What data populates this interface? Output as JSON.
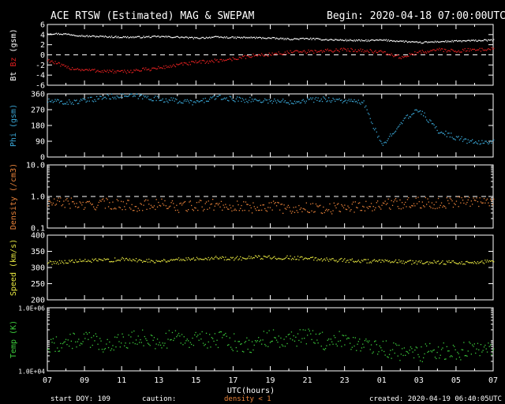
{
  "header": {
    "title": "ACE RTSW (Estimated) MAG & SWEPAM",
    "begin": "Begin: 2020-04-18 07:00:00UTC"
  },
  "footer": {
    "start_doy": "start DOY: 109",
    "caution": "caution:",
    "density_note": "density < 1",
    "created": "created: 2020-04-19 06:40:05UTC"
  },
  "colors": {
    "bt": "#ffffff",
    "bz": "#e02020",
    "phi": "#3aa8d8",
    "density": "#e8823a",
    "speed": "#e6e640",
    "temp": "#3ccc3c",
    "axis": "#ffffff",
    "background": "#000000"
  },
  "chart_data": [
    {
      "type": "scatter",
      "title": "ACE RTSW (Estimated) MAG & SWEPAM",
      "ylabel_parts": [
        "Bt",
        "Bz",
        "(gsm)"
      ],
      "ylim": [
        -6,
        6
      ],
      "yticks": [
        "6",
        "4",
        "2",
        "0",
        "-2",
        "-4",
        "-6"
      ],
      "reference_line": 0,
      "x_hours": [
        0,
        1,
        2,
        3,
        4,
        5,
        6,
        7,
        8,
        9,
        10,
        11,
        12,
        13,
        14,
        15,
        16,
        17,
        18,
        19,
        20,
        21,
        22,
        23,
        24
      ],
      "series": [
        {
          "name": "Bt",
          "values": [
            4.2,
            4.1,
            3.7,
            3.6,
            3.5,
            3.5,
            3.6,
            3.5,
            3.3,
            3.5,
            3.4,
            3.4,
            3.3,
            3.1,
            3.2,
            3.0,
            2.9,
            2.8,
            2.9,
            2.7,
            2.4,
            2.6,
            2.7,
            2.8,
            2.9
          ]
        },
        {
          "name": "Bz",
          "values": [
            -1.0,
            -2.5,
            -3.0,
            -3.2,
            -3.4,
            -3.0,
            -2.6,
            -2.0,
            -1.5,
            -1.2,
            -0.8,
            -0.2,
            0.1,
            0.5,
            0.6,
            0.8,
            1.0,
            0.9,
            0.5,
            -0.5,
            0.5,
            1.0,
            0.8,
            1.0,
            1.2
          ]
        }
      ]
    },
    {
      "type": "scatter",
      "ylabel": "Phi (gsm)",
      "ylim": [
        0,
        360
      ],
      "yticks": [
        "360",
        "270",
        "180",
        "90",
        "0"
      ],
      "x_hours": [
        0,
        1,
        2,
        3,
        4,
        5,
        6,
        7,
        8,
        9,
        10,
        11,
        12,
        13,
        14,
        15,
        16,
        17,
        18,
        19,
        20,
        21,
        22,
        23,
        24
      ],
      "series": [
        {
          "name": "Phi",
          "values": [
            320,
            310,
            320,
            340,
            350,
            345,
            330,
            320,
            310,
            340,
            330,
            325,
            320,
            315,
            325,
            330,
            320,
            310,
            60,
            200,
            270,
            150,
            110,
            80,
            90
          ]
        }
      ]
    },
    {
      "type": "scatter",
      "ylabel": "Density (/cm3)",
      "yscale": "log",
      "ylim": [
        0.1,
        10
      ],
      "yticks": [
        "10.0",
        "1.0",
        "0.1"
      ],
      "reference_line": 1.0,
      "x_hours": [
        0,
        1,
        2,
        3,
        4,
        5,
        6,
        7,
        8,
        9,
        10,
        11,
        12,
        13,
        14,
        15,
        16,
        17,
        18,
        19,
        20,
        21,
        22,
        23,
        24
      ],
      "series": [
        {
          "name": "Density",
          "values": [
            0.6,
            0.65,
            0.5,
            0.6,
            0.55,
            0.5,
            0.6,
            0.45,
            0.5,
            0.55,
            0.5,
            0.45,
            0.5,
            0.4,
            0.45,
            0.4,
            0.45,
            0.5,
            0.55,
            0.6,
            0.65,
            0.6,
            0.7,
            0.7,
            0.75
          ]
        }
      ]
    },
    {
      "type": "scatter",
      "ylabel": "Speed (km/s)",
      "ylim": [
        200,
        400
      ],
      "yticks": [
        "400",
        "350",
        "300",
        "250",
        "200"
      ],
      "x_hours": [
        0,
        1,
        2,
        3,
        4,
        5,
        6,
        7,
        8,
        9,
        10,
        11,
        12,
        13,
        14,
        15,
        16,
        17,
        18,
        19,
        20,
        21,
        22,
        23,
        24
      ],
      "series": [
        {
          "name": "Speed",
          "values": [
            315,
            318,
            320,
            322,
            325,
            322,
            320,
            325,
            328,
            330,
            328,
            330,
            332,
            330,
            328,
            325,
            322,
            320,
            318,
            318,
            315,
            316,
            315,
            316,
            318
          ]
        }
      ]
    },
    {
      "type": "scatter",
      "ylabel": "Temp (K)",
      "yscale": "log",
      "ylim": [
        10000,
        1000000
      ],
      "yticks": [
        "1.0E+06",
        "1.0E+04"
      ],
      "x_hours": [
        0,
        1,
        2,
        3,
        4,
        5,
        6,
        7,
        8,
        9,
        10,
        11,
        12,
        13,
        14,
        15,
        16,
        17,
        18,
        19,
        20,
        21,
        22,
        23,
        24
      ],
      "series": [
        {
          "name": "Temp",
          "values": [
            60000,
            80000,
            100000,
            70000,
            90000,
            110000,
            80000,
            120000,
            90000,
            100000,
            80000,
            70000,
            110000,
            90000,
            120000,
            80000,
            100000,
            70000,
            50000,
            40000,
            35000,
            45000,
            40000,
            50000,
            60000
          ]
        }
      ]
    }
  ],
  "xaxis": {
    "label": "UTC(hours)",
    "tick_labels": [
      "07",
      "09",
      "11",
      "13",
      "15",
      "17",
      "19",
      "21",
      "23",
      "01",
      "03",
      "05",
      "07"
    ]
  }
}
